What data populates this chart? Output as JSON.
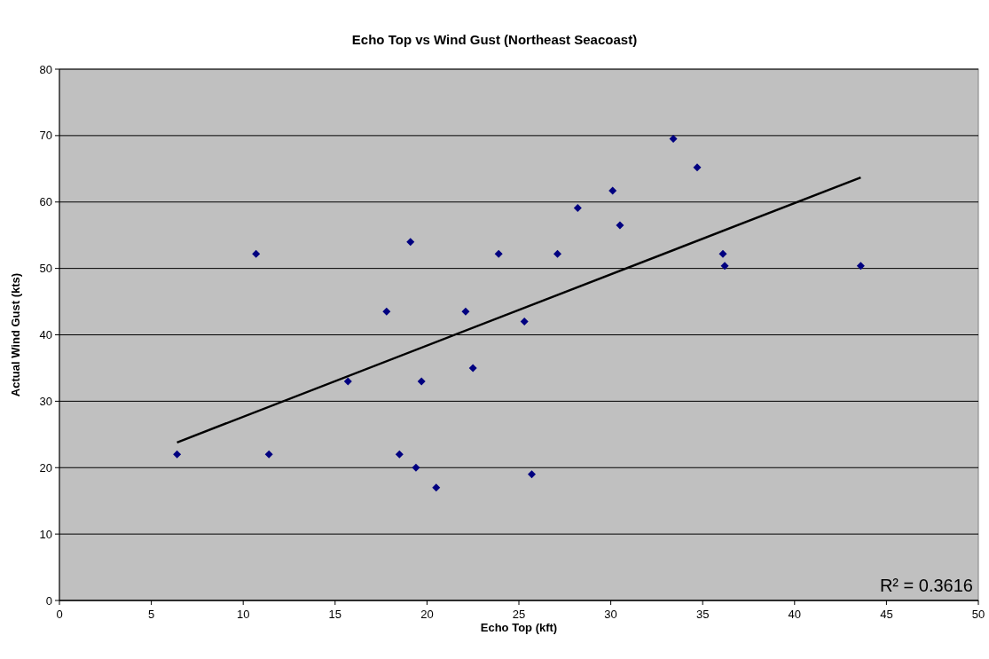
{
  "chart_data": {
    "type": "scatter",
    "title": "Echo Top vs Wind Gust (Northeast Seacoast)",
    "xlabel": "Echo Top (kft)",
    "ylabel": "Actual Wind Gust (kts)",
    "xlim": [
      0,
      50
    ],
    "xticks": [
      0,
      5,
      10,
      15,
      20,
      25,
      30,
      35,
      40,
      45,
      50
    ],
    "ylim": [
      0,
      80
    ],
    "yticks": [
      0,
      10,
      20,
      30,
      40,
      50,
      60,
      70,
      80
    ],
    "grid": "y",
    "series": [
      {
        "marker": "diamond",
        "color": "#000080",
        "x": [
          6.4,
          10.7,
          11.4,
          15.7,
          17.8,
          18.5,
          19.1,
          19.4,
          19.7,
          20.5,
          22.1,
          22.5,
          23.9,
          25.3,
          25.7,
          27.1,
          28.2,
          30.1,
          30.5,
          33.4,
          34.7,
          36.1,
          36.2,
          43.6
        ],
        "values": [
          22,
          52.2,
          22,
          33,
          43.5,
          22,
          54,
          20,
          33,
          17,
          43.5,
          35,
          52.2,
          42,
          19,
          52.2,
          59.1,
          61.7,
          56.5,
          69.5,
          65.2,
          52.2,
          50.4,
          50.4
        ]
      },
      {
        "type": "line",
        "color": "#000000",
        "x": [
          6.4,
          43.6
        ],
        "values": [
          23.8,
          63.7
        ]
      }
    ],
    "annotations": [
      "R² = 0.3616"
    ]
  }
}
